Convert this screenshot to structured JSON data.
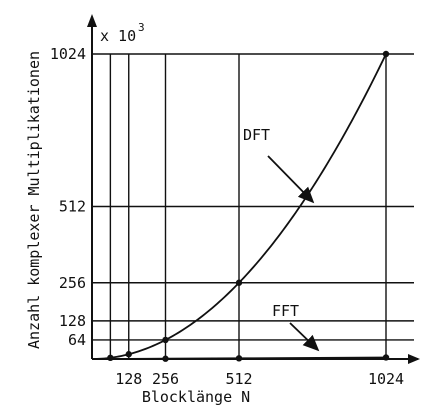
{
  "chart_data": {
    "type": "line",
    "xlabel": "Blocklänge N",
    "ylabel": "Anzahl komplexer Multiplikationen",
    "y_multiplier_base": "x 10",
    "y_multiplier_exp": "3",
    "xlim": [
      0,
      1024
    ],
    "ylim": [
      0,
      1024
    ],
    "x_ticks": [
      128,
      256,
      512,
      1024
    ],
    "y_ticks": [
      64,
      128,
      256,
      512,
      1024
    ],
    "vertical_gridlines_at": [
      64,
      128,
      256,
      512,
      1024
    ],
    "horizontal_gridlines_at": [
      64,
      128,
      256,
      512,
      1024
    ],
    "grid": true,
    "series": [
      {
        "name": "DFT",
        "x": [
          0,
          64,
          128,
          256,
          512,
          1024
        ],
        "y": [
          0,
          4,
          16,
          64,
          256,
          1024
        ]
      },
      {
        "name": "FFT",
        "x": [
          0,
          64,
          128,
          256,
          512,
          1024
        ],
        "y": [
          0,
          0.2,
          0.45,
          1,
          2.3,
          5.1
        ]
      }
    ],
    "marked_points": [
      {
        "series": "DFT",
        "x": 64,
        "y": 4
      },
      {
        "series": "DFT",
        "x": 128,
        "y": 16
      },
      {
        "series": "DFT",
        "x": 256,
        "y": 64
      },
      {
        "series": "DFT",
        "x": 512,
        "y": 256
      },
      {
        "series": "DFT",
        "x": 1024,
        "y": 1024
      },
      {
        "series": "FFT",
        "x": 256,
        "y": 1
      },
      {
        "series": "FFT",
        "x": 512,
        "y": 2.3
      },
      {
        "series": "FFT",
        "x": 1024,
        "y": 5.1
      }
    ],
    "annotations": [
      {
        "text": "DFT",
        "points_to": "DFT"
      },
      {
        "text": "FFT",
        "points_to": "FFT"
      }
    ]
  }
}
